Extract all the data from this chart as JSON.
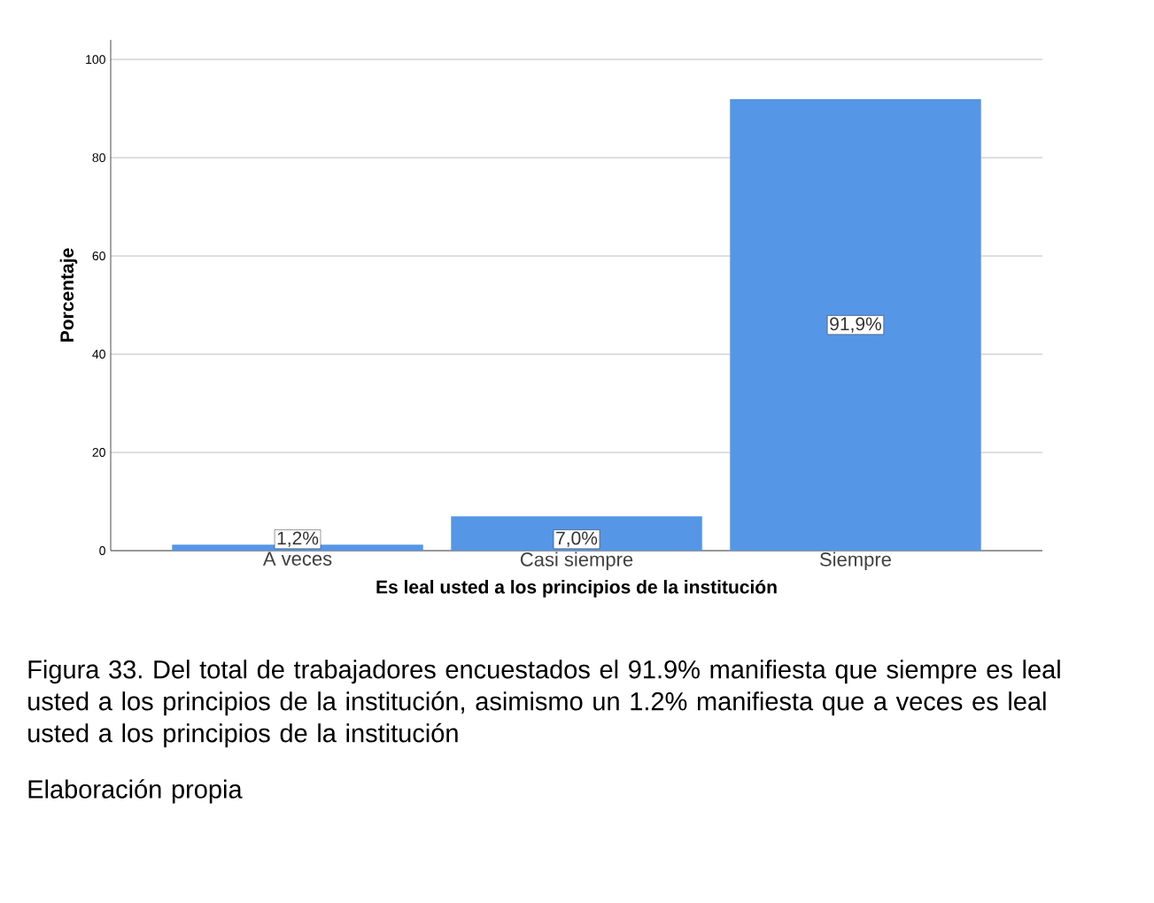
{
  "chart_data": {
    "type": "bar",
    "xlabel": "Es leal usted a los principios de la institución",
    "ylabel": "Porcentaje",
    "categories": [
      "A veces",
      "Casi siempre",
      "Siempre"
    ],
    "values": [
      1.2,
      7.0,
      91.9
    ],
    "value_labels": [
      "1,2%",
      "7,0%",
      "91,9%"
    ],
    "color": "#5596e6",
    "ylim": [
      0,
      104
    ],
    "yticks": [
      0,
      20,
      40,
      60,
      80,
      100
    ],
    "grid": "y",
    "annotations": [
      "Figura 33. Del total de trabajadores encuestados el 91.9% manifiesta que siempre es leal usted a los principios de la institución, asimismo un 1.2% manifiesta que a veces es leal usted a los principios de la institución",
      "Elaboración propia"
    ]
  }
}
